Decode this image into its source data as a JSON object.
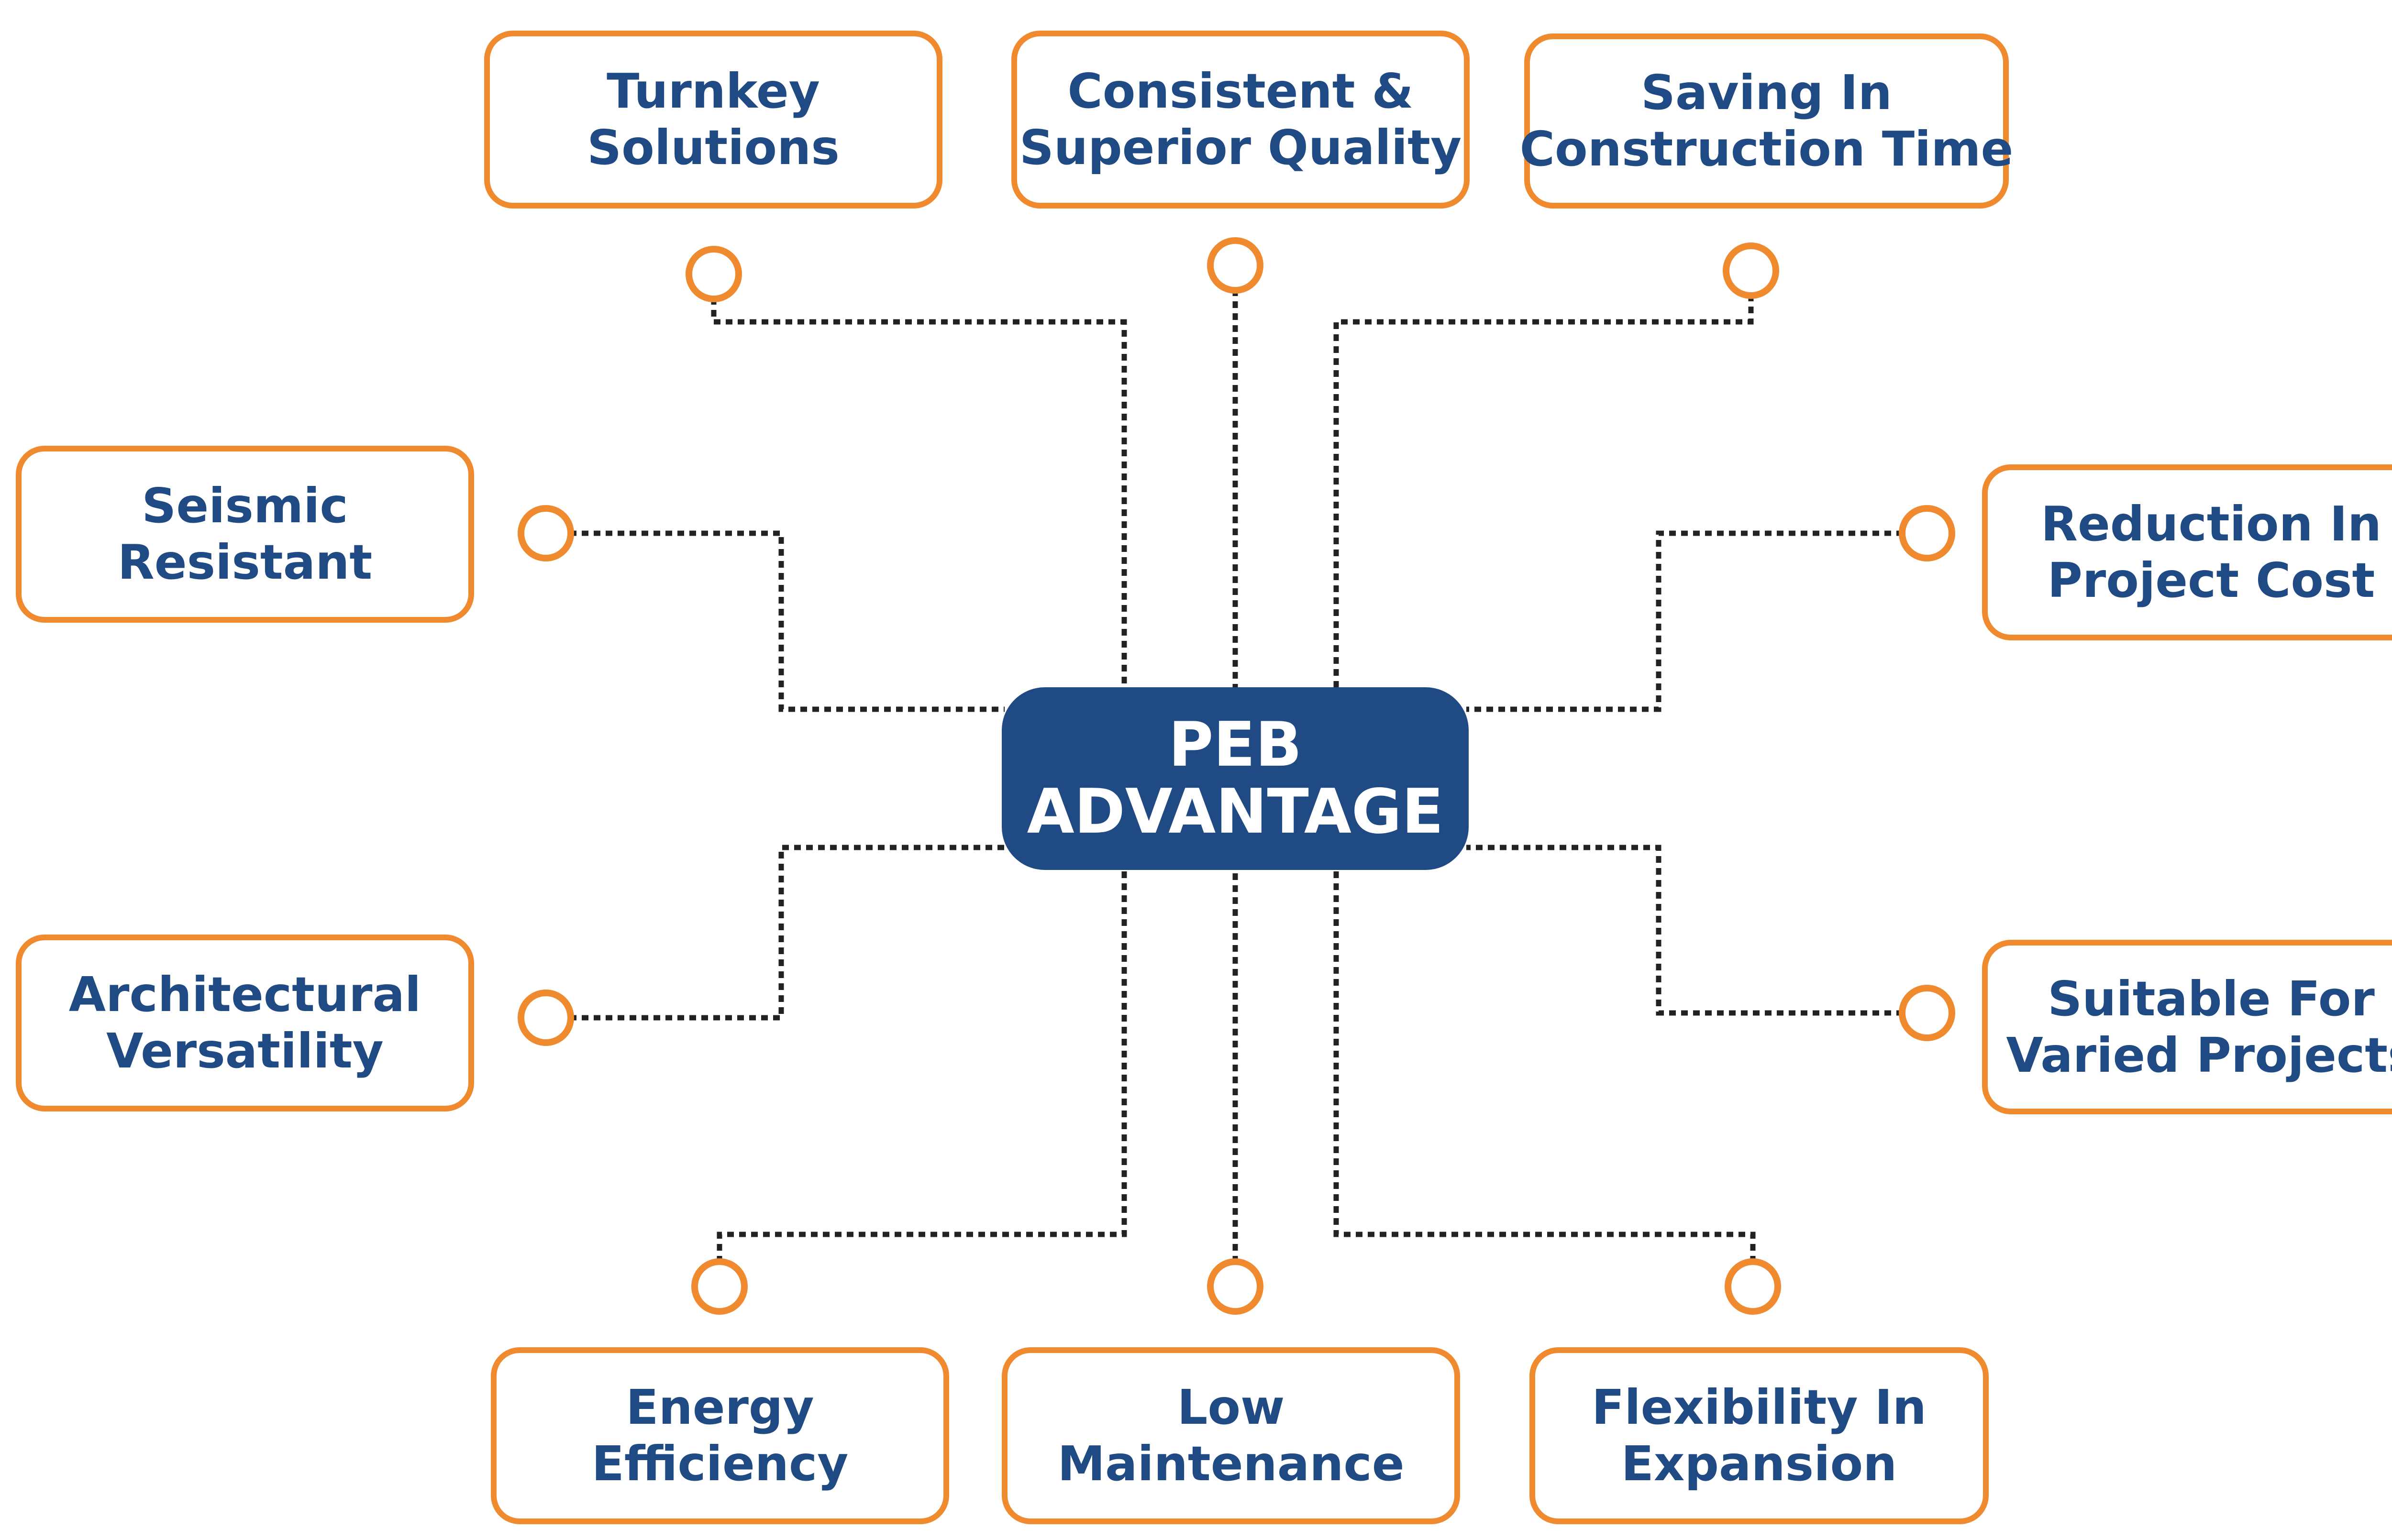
{
  "center": {
    "line1": "PEB",
    "line2": "ADVANTAGE"
  },
  "colors": {
    "accent": "#ef8a2e",
    "brand": "#1f4a83",
    "connector": "#222222",
    "background": "#ffffff"
  },
  "nodes": [
    {
      "id": "turnkey",
      "line1": "Turnkey",
      "line2": "Solutions"
    },
    {
      "id": "quality",
      "line1": "Consistent &",
      "line2": "Superior Quality"
    },
    {
      "id": "saving-time",
      "line1": "Saving In",
      "line2": "Construction Time"
    },
    {
      "id": "seismic",
      "line1": "Seismic",
      "line2": "Resistant"
    },
    {
      "id": "cost",
      "line1": "Reduction In",
      "line2": "Project Cost"
    },
    {
      "id": "architectural",
      "line1": "Architectural",
      "line2": "Versatility"
    },
    {
      "id": "suitable",
      "line1": "Suitable For",
      "line2": "Varied Projects"
    },
    {
      "id": "energy",
      "line1": "Energy",
      "line2": "Efficiency"
    },
    {
      "id": "maintenance",
      "line1": "Low",
      "line2": "Maintenance"
    },
    {
      "id": "flexibility",
      "line1": "Flexibility In",
      "line2": "Expansion"
    }
  ]
}
